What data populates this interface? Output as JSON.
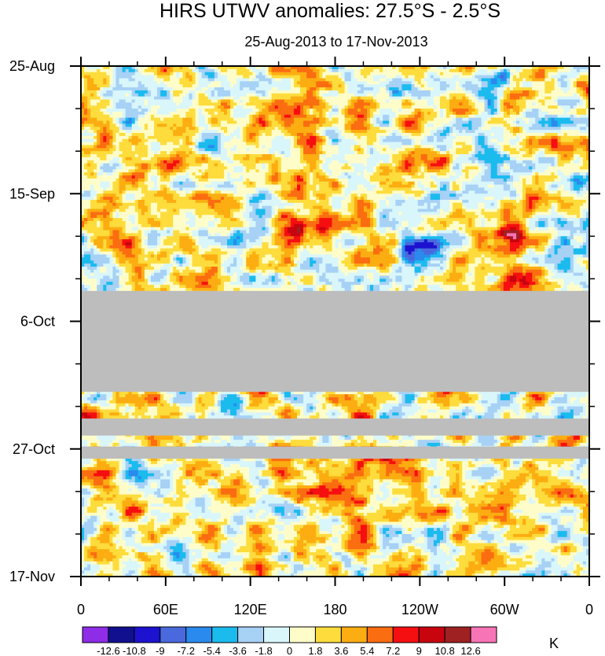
{
  "chart_data": {
    "type": "heatmap",
    "title": "HIRS UTWV anomalies: 27.5°S - 2.5°S",
    "subtitle": "25-Aug-2013 to 17-Nov-2013",
    "units": "K",
    "x_ticks": [
      "0",
      "60E",
      "120E",
      "180",
      "120W",
      "60W",
      "0"
    ],
    "x_tick_values": [
      0,
      60,
      120,
      180,
      240,
      300,
      360
    ],
    "y_ticks": [
      "25-Aug",
      "15-Sep",
      "6-Oct",
      "27-Oct",
      "17-Nov"
    ],
    "y_tick_days": [
      0,
      21,
      42,
      63,
      84
    ],
    "x_range": [
      0,
      360
    ],
    "y_range_days": [
      0,
      84
    ],
    "missing_periods": [
      {
        "start_day": 37.0,
        "end_day": 53.6
      },
      {
        "start_day": 58.0,
        "end_day": 60.8
      },
      {
        "start_day": 62.6,
        "end_day": 64.6
      }
    ],
    "colorbar": {
      "levels": [
        "-12.6",
        "-10.8",
        "-9",
        "-7.2",
        "-5.4",
        "-3.6",
        "-1.8",
        "0",
        "1.8",
        "3.6",
        "5.4",
        "7.2",
        "9",
        "10.8",
        "12.6"
      ],
      "colors": [
        "#8e2ce8",
        "#11108f",
        "#1c12cf",
        "#4a69dc",
        "#2b8aed",
        "#1bbbee",
        "#a7d1f5",
        "#d9f6fb",
        "#fefdca",
        "#fddc3c",
        "#fcad11",
        "#fb6d11",
        "#f60f10",
        "#c8040f",
        "#9f2121",
        "#f774b6"
      ]
    }
  }
}
